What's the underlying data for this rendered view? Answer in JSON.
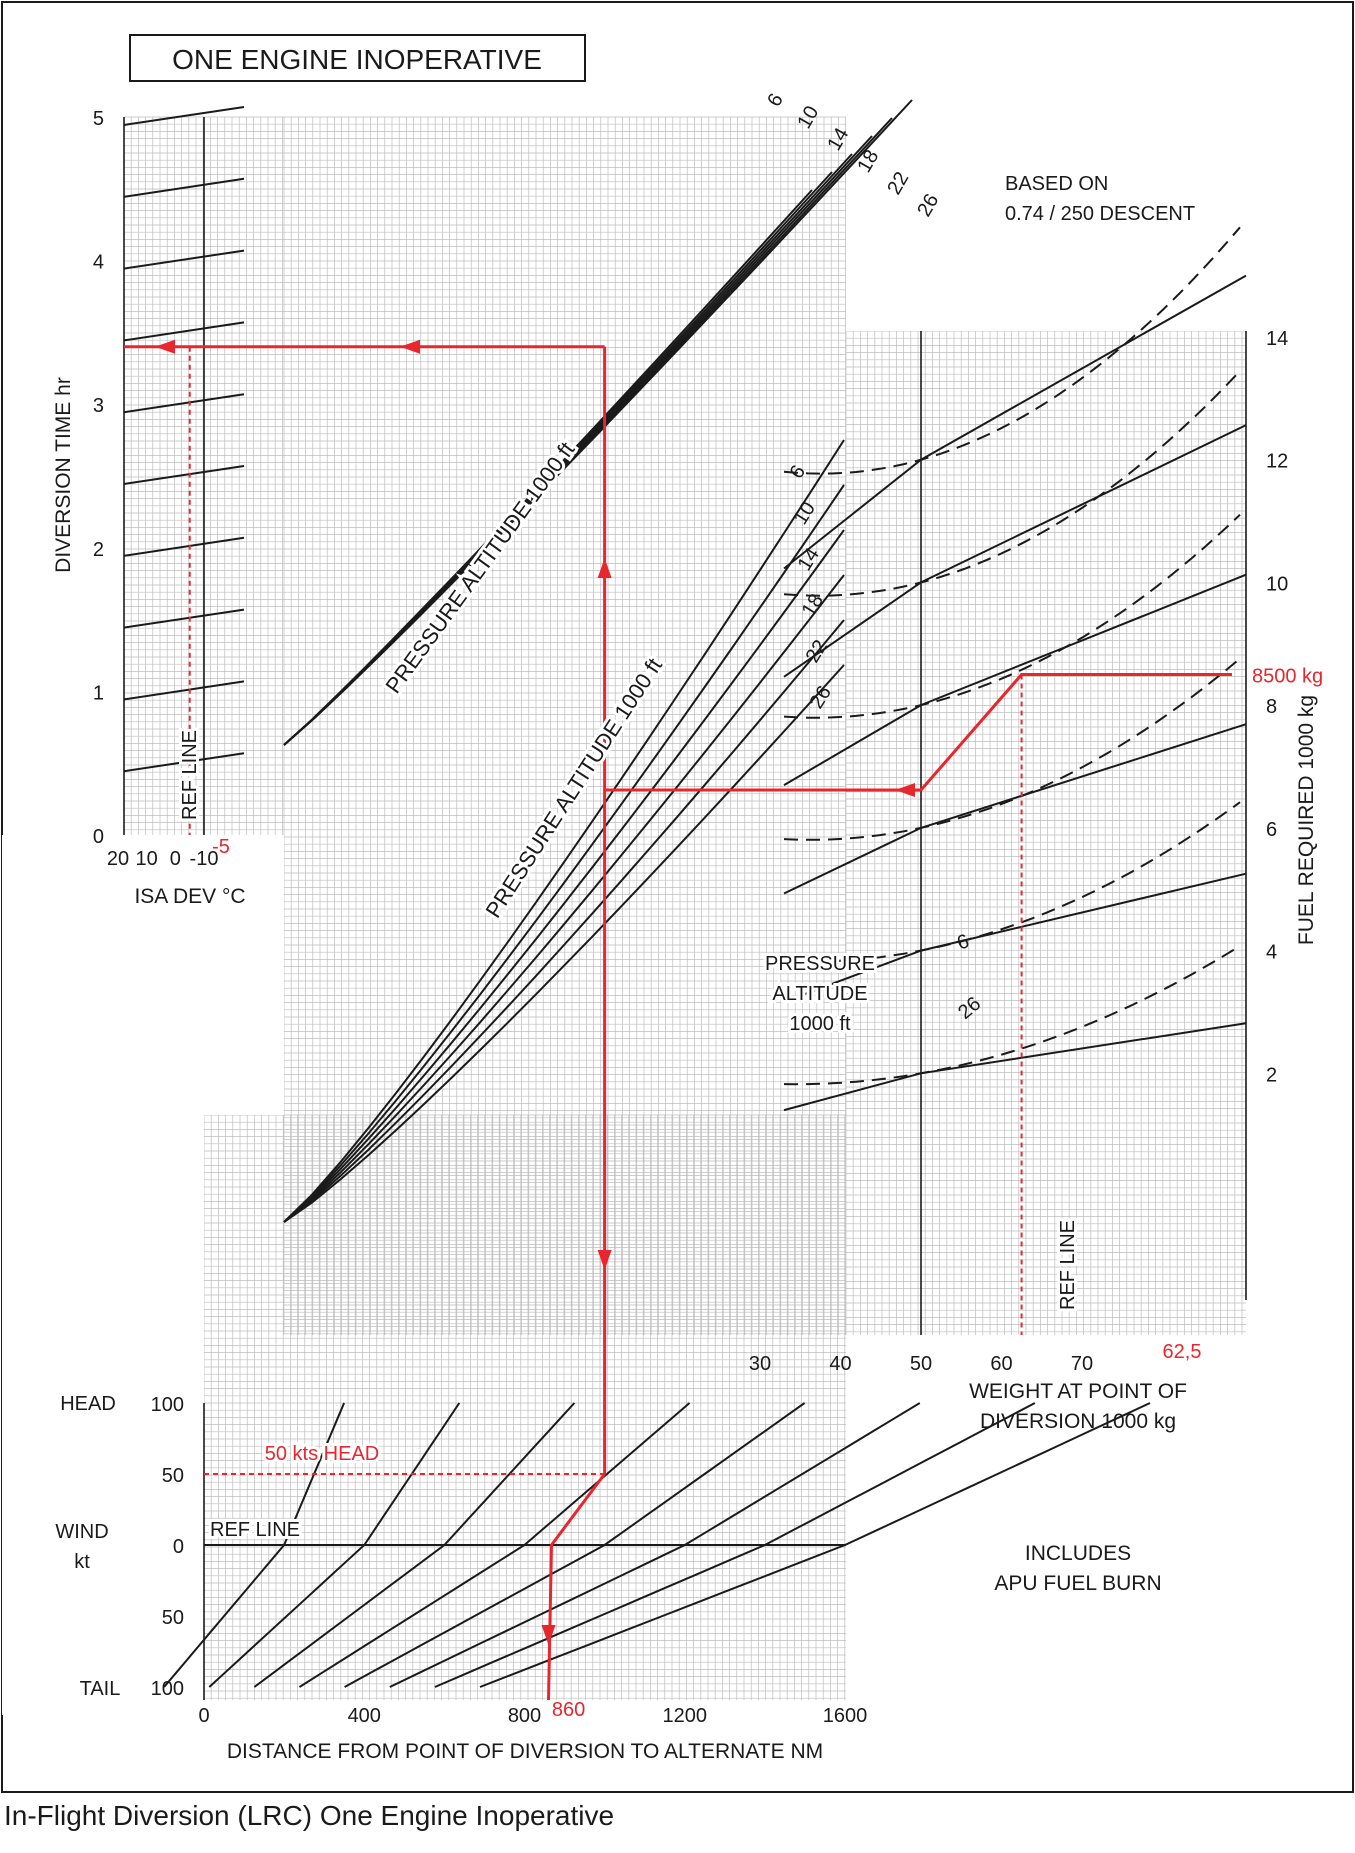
{
  "caption": "In-Flight Diversion (LRC) One Engine Inoperative",
  "chart_data": {
    "type": "line",
    "title": "ONE ENGINE INOPERATIVE",
    "notes": [
      "BASED ON",
      "0.74 / 250 DESCENT",
      "INCLUDES",
      "APU FUEL BURN"
    ],
    "colors": {
      "grid": "#bdbdbd",
      "curve": "#1a1a1a",
      "example": "#e8262d"
    },
    "panels": {
      "isa": {
        "xlabel": "ISA DEV °C",
        "xticks": [
          "20",
          "10",
          "0",
          "-10"
        ],
        "ylabel": "DIVERSION TIME",
        "yunit": "hr",
        "yticks": [
          "0",
          "1",
          "2",
          "3",
          "4",
          "5"
        ],
        "ref_label": "REF LINE"
      },
      "wind": {
        "ylabel": "WIND",
        "yunit": "kt",
        "yticks": [
          "100",
          "50",
          "0",
          "50",
          "100"
        ],
        "head_label": "HEAD",
        "tail_label": "TAIL",
        "ref_label": "REF LINE"
      },
      "distance": {
        "xlabel": "DISTANCE FROM POINT OF DIVERSION TO ALTERNATE",
        "xunit": "NM",
        "xticks": [
          "0",
          "400",
          "800",
          "1200",
          "1600"
        ],
        "time_curves": {
          "label": "PRESSURE ALTITUDE  1000 ft",
          "altitudes": [
            "6",
            "10",
            "14",
            "18",
            "22",
            "26"
          ]
        },
        "fuel_curves": {
          "label": "PRESSURE ALTITUDE  1000 ft",
          "altitudes": [
            "6",
            "10",
            "14",
            "18",
            "22",
            "26"
          ]
        }
      },
      "weight": {
        "xlabel": "WEIGHT AT POINT OF",
        "xlabel2": "DIVERSION   1000 kg",
        "xticks": [
          "30",
          "40",
          "50",
          "60",
          "70"
        ],
        "ylabel": "FUEL REQUIRED",
        "yunit": "1000 kg",
        "yticks": [
          "2",
          "4",
          "6",
          "8",
          "10",
          "12",
          "14"
        ],
        "legend_title": [
          "PRESSURE",
          "ALTITUDE",
          "1000 ft"
        ],
        "line_labels": [
          "6",
          "26"
        ],
        "ref_label": "REF LINE"
      }
    },
    "example": {
      "wind_label": "50 kts HEAD",
      "wind_kt": 50,
      "distance_label": "860",
      "distance_nm": 860,
      "weight_label": "62,5",
      "weight_t": 62.5,
      "isa_label": "-5",
      "isa_dev": -5,
      "fuel_label": "8500 kg",
      "fuel_kg": 8500,
      "time_hr": 3.4
    }
  }
}
